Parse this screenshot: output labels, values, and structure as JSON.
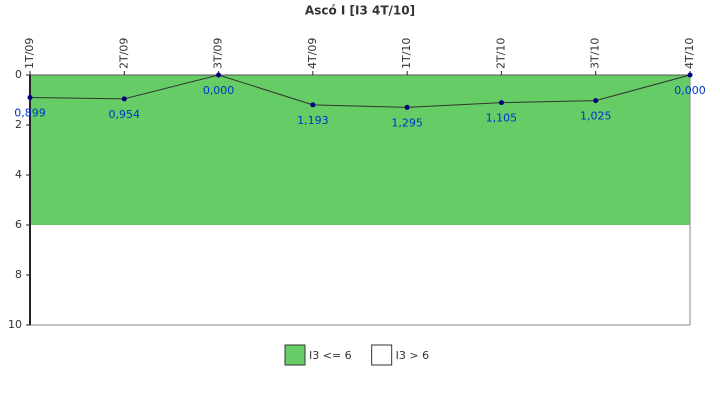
{
  "chart_data": {
    "type": "line",
    "title": "Ascó I [I3 4T/10]",
    "categories": [
      "1T/09",
      "2T/09",
      "3T/09",
      "4T/09",
      "1T/10",
      "2T/10",
      "3T/10",
      "4T/10"
    ],
    "series": [
      {
        "name": null,
        "color": "#333333",
        "marker_color": "#000080",
        "values": [
          0.899,
          0.954,
          0,
          1.193,
          1.295,
          1.105,
          1.025,
          0
        ],
        "value_labels": [
          "0,899",
          "0,954",
          "0,000",
          "1,193",
          "1,295",
          "1,105",
          "1,025",
          "0,000"
        ]
      }
    ],
    "bands": [
      {
        "name": "I3 <= 6",
        "color": "#66cc66",
        "from": 0,
        "to": 6
      },
      {
        "name": "I3 > 6",
        "color": "#ffffff",
        "from": 6,
        "to": 10
      }
    ],
    "ylim": [
      0,
      10
    ],
    "yticks": [
      0,
      2,
      4,
      6,
      8,
      10
    ],
    "y_inverted": true,
    "label_color": "#0033cc"
  }
}
